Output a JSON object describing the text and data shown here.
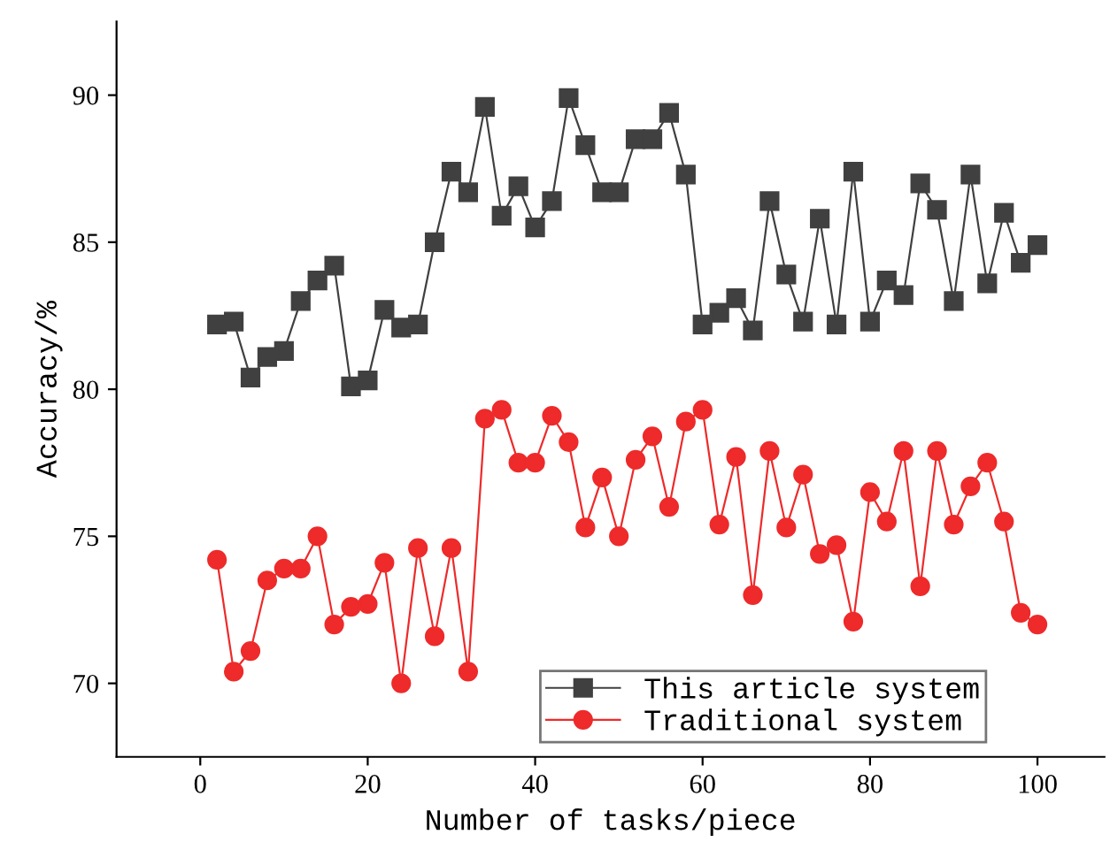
{
  "chart_data": {
    "type": "line",
    "xlabel": "Number of tasks/piece",
    "ylabel": "Accuracy/%",
    "xlim": [
      -10,
      108
    ],
    "ylim": [
      67.5,
      92.5
    ],
    "xticks": [
      0,
      20,
      40,
      60,
      80,
      100
    ],
    "yticks": [
      70,
      75,
      80,
      85,
      90
    ],
    "x": [
      2,
      4,
      6,
      8,
      10,
      12,
      14,
      16,
      18,
      20,
      22,
      24,
      26,
      28,
      30,
      32,
      34,
      36,
      38,
      40,
      42,
      44,
      46,
      48,
      50,
      52,
      54,
      56,
      58,
      60,
      62,
      64,
      66,
      68,
      70,
      72,
      74,
      76,
      78,
      80,
      82,
      84,
      86,
      88,
      90,
      92,
      94,
      96,
      98,
      100
    ],
    "series": [
      {
        "name": "This article system",
        "color": "#404040",
        "marker": "square",
        "values": [
          82.2,
          82.3,
          80.4,
          81.1,
          81.3,
          83.0,
          83.7,
          84.2,
          80.1,
          80.3,
          82.7,
          82.1,
          82.2,
          85.0,
          87.4,
          86.7,
          89.6,
          85.9,
          86.9,
          85.5,
          86.4,
          89.9,
          88.3,
          86.7,
          86.7,
          88.5,
          88.5,
          89.4,
          87.3,
          82.2,
          82.6,
          83.1,
          82.0,
          86.4,
          83.9,
          82.3,
          85.8,
          82.2,
          87.4,
          82.3,
          83.7,
          83.2,
          87.0,
          86.1,
          83.0,
          87.3,
          83.6,
          86.0,
          84.3,
          84.9
        ]
      },
      {
        "name": "Traditional system",
        "color": "#ee2a2a",
        "marker": "circle",
        "values": [
          74.2,
          70.4,
          71.1,
          73.5,
          73.9,
          73.9,
          75.0,
          72.0,
          72.6,
          72.7,
          74.1,
          70.0,
          74.6,
          71.6,
          74.6,
          70.4,
          79.0,
          79.3,
          77.5,
          77.5,
          79.1,
          78.2,
          75.3,
          77.0,
          75.0,
          77.6,
          78.4,
          76.0,
          78.9,
          79.3,
          75.4,
          77.7,
          73.0,
          77.9,
          75.3,
          77.1,
          74.4,
          74.7,
          72.1,
          76.5,
          75.5,
          77.9,
          73.3,
          77.9,
          75.4,
          76.7,
          77.5,
          75.5,
          72.4,
          72.0
        ]
      }
    ],
    "line_style": "solid",
    "legend": "bottom right",
    "grid": false
  }
}
